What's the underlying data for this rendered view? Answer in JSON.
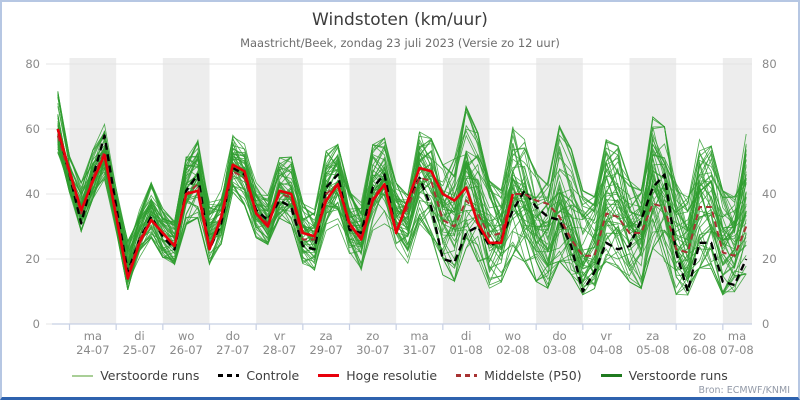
{
  "title": "Windstoten (km/uur)",
  "subtitle": "Maastricht/Beek, zondag 23 juli 2023 (Versie zo 12 uur)",
  "source": "Bron: ECMWF/KNMI",
  "colors": {
    "band": "#ededed",
    "grid": "#e4e4e4",
    "axis": "#c7d0e4",
    "tick_text": "#8a8a8a",
    "ensemble": "#2f9e2f",
    "ensemble_legend_light": "#a9cf97",
    "ensemble_legend_dark": "#1f7a1f",
    "controle": "#000000",
    "hoge_resolutie": "#e8000b",
    "middelste": "#a83232"
  },
  "y_axis": {
    "min": 0,
    "max": 80,
    "ticks": [
      0,
      20,
      40,
      60,
      80
    ]
  },
  "x_axis": {
    "days": [
      {
        "day": "ma",
        "date": "24-07"
      },
      {
        "day": "di",
        "date": "25-07"
      },
      {
        "day": "wo",
        "date": "26-07"
      },
      {
        "day": "do",
        "date": "27-07"
      },
      {
        "day": "vr",
        "date": "28-07"
      },
      {
        "day": "za",
        "date": "29-07"
      },
      {
        "day": "zo",
        "date": "30-07"
      },
      {
        "day": "ma",
        "date": "31-07"
      },
      {
        "day": "di",
        "date": "01-08"
      },
      {
        "day": "wo",
        "date": "02-08"
      },
      {
        "day": "do",
        "date": "03-08"
      },
      {
        "day": "vr",
        "date": "04-08"
      },
      {
        "day": "za",
        "date": "05-08"
      },
      {
        "day": "zo",
        "date": "06-08"
      },
      {
        "day": "ma",
        "date": "07-08"
      }
    ]
  },
  "legend": [
    {
      "label": "Verstoorde runs",
      "color_key": "ensemble_legend_light",
      "dashed": false,
      "thick": false
    },
    {
      "label": "Controle",
      "color_key": "controle",
      "dashed": true,
      "thick": true
    },
    {
      "label": "Hoge resolutie",
      "color_key": "hoge_resolutie",
      "dashed": false,
      "thick": true
    },
    {
      "label": "Middelste (P50)",
      "color_key": "middelste",
      "dashed": true,
      "thick": true
    },
    {
      "label": "Verstoorde runs",
      "color_key": "ensemble_legend_dark",
      "dashed": false,
      "thick": true
    }
  ],
  "chart_data": {
    "type": "line",
    "title": "Windstoten (km/uur)",
    "xlabel": "",
    "ylabel": "km/uur",
    "ylim": [
      0,
      80
    ],
    "x_start": "2023-07-23 18:00",
    "x_step_hours": 6,
    "n_points": 60,
    "grid": true,
    "legend_position": "bottom-center",
    "series": [
      {
        "name": "Controle",
        "style": "dashed",
        "color_key": "controle",
        "values": [
          60,
          46,
          31,
          45,
          58,
          36,
          16,
          26,
          33,
          27,
          23,
          41,
          46,
          23,
          31,
          48,
          46,
          35,
          32,
          38,
          36,
          24,
          23,
          42,
          46,
          29,
          28,
          42,
          46,
          28,
          38,
          45,
          36,
          20,
          19,
          28,
          30,
          24,
          26,
          35,
          41,
          36,
          33,
          32,
          24,
          10,
          16,
          25,
          23,
          24,
          32,
          42,
          46,
          22,
          10,
          25,
          25,
          13,
          12,
          20
        ]
      },
      {
        "name": "Hoge resolutie",
        "style": "solid",
        "color_key": "hoge_resolutie",
        "values": [
          60,
          47,
          35,
          44,
          52,
          33,
          14,
          25,
          32,
          28,
          24,
          40,
          41,
          23,
          33,
          49,
          47,
          34,
          30,
          41,
          40,
          28,
          27,
          38,
          43,
          31,
          26,
          38,
          43,
          28,
          38,
          48,
          47,
          40,
          38,
          42,
          31,
          25,
          25,
          40
        ]
      },
      {
        "name": "Middelste (P50)",
        "style": "dashed",
        "color_key": "middelste",
        "values": [
          58,
          46,
          34,
          45,
          53,
          34,
          15,
          26,
          32,
          28,
          24,
          40,
          43,
          24,
          32,
          47,
          45,
          34,
          31,
          40,
          39,
          26,
          26,
          40,
          43,
          30,
          27,
          39,
          43,
          29,
          36,
          45,
          44,
          32,
          30,
          38,
          34,
          27,
          28,
          40,
          40,
          38,
          37,
          33,
          26,
          21,
          21,
          34,
          33,
          28,
          28,
          37,
          36,
          23,
          22,
          36,
          36,
          22,
          21,
          30
        ]
      }
    ],
    "ensemble": {
      "name": "Verstoorde runs",
      "members_count": 50,
      "style": "thin-solid",
      "color_key": "ensemble",
      "envelope_max": [
        74,
        52,
        44,
        54,
        62,
        42,
        26,
        36,
        44,
        36,
        32,
        52,
        57,
        38,
        42,
        61,
        56,
        44,
        40,
        52,
        52,
        38,
        36,
        54,
        56,
        42,
        38,
        56,
        58,
        44,
        42,
        60,
        58,
        50,
        52,
        68,
        60,
        45,
        42,
        62,
        58,
        48,
        45,
        62,
        55,
        42,
        40,
        58,
        56,
        45,
        42,
        65,
        62,
        45,
        40,
        58,
        56,
        42,
        40,
        61
      ],
      "envelope_min": [
        50,
        40,
        28,
        38,
        44,
        28,
        10,
        20,
        26,
        20,
        18,
        30,
        32,
        18,
        24,
        40,
        36,
        26,
        24,
        32,
        30,
        18,
        16,
        28,
        30,
        20,
        16,
        28,
        30,
        22,
        18,
        30,
        26,
        14,
        12,
        22,
        18,
        10,
        12,
        20,
        18,
        12,
        10,
        18,
        14,
        8,
        10,
        18,
        16,
        12,
        10,
        22,
        18,
        8,
        8,
        16,
        14,
        8,
        9,
        14
      ]
    }
  }
}
